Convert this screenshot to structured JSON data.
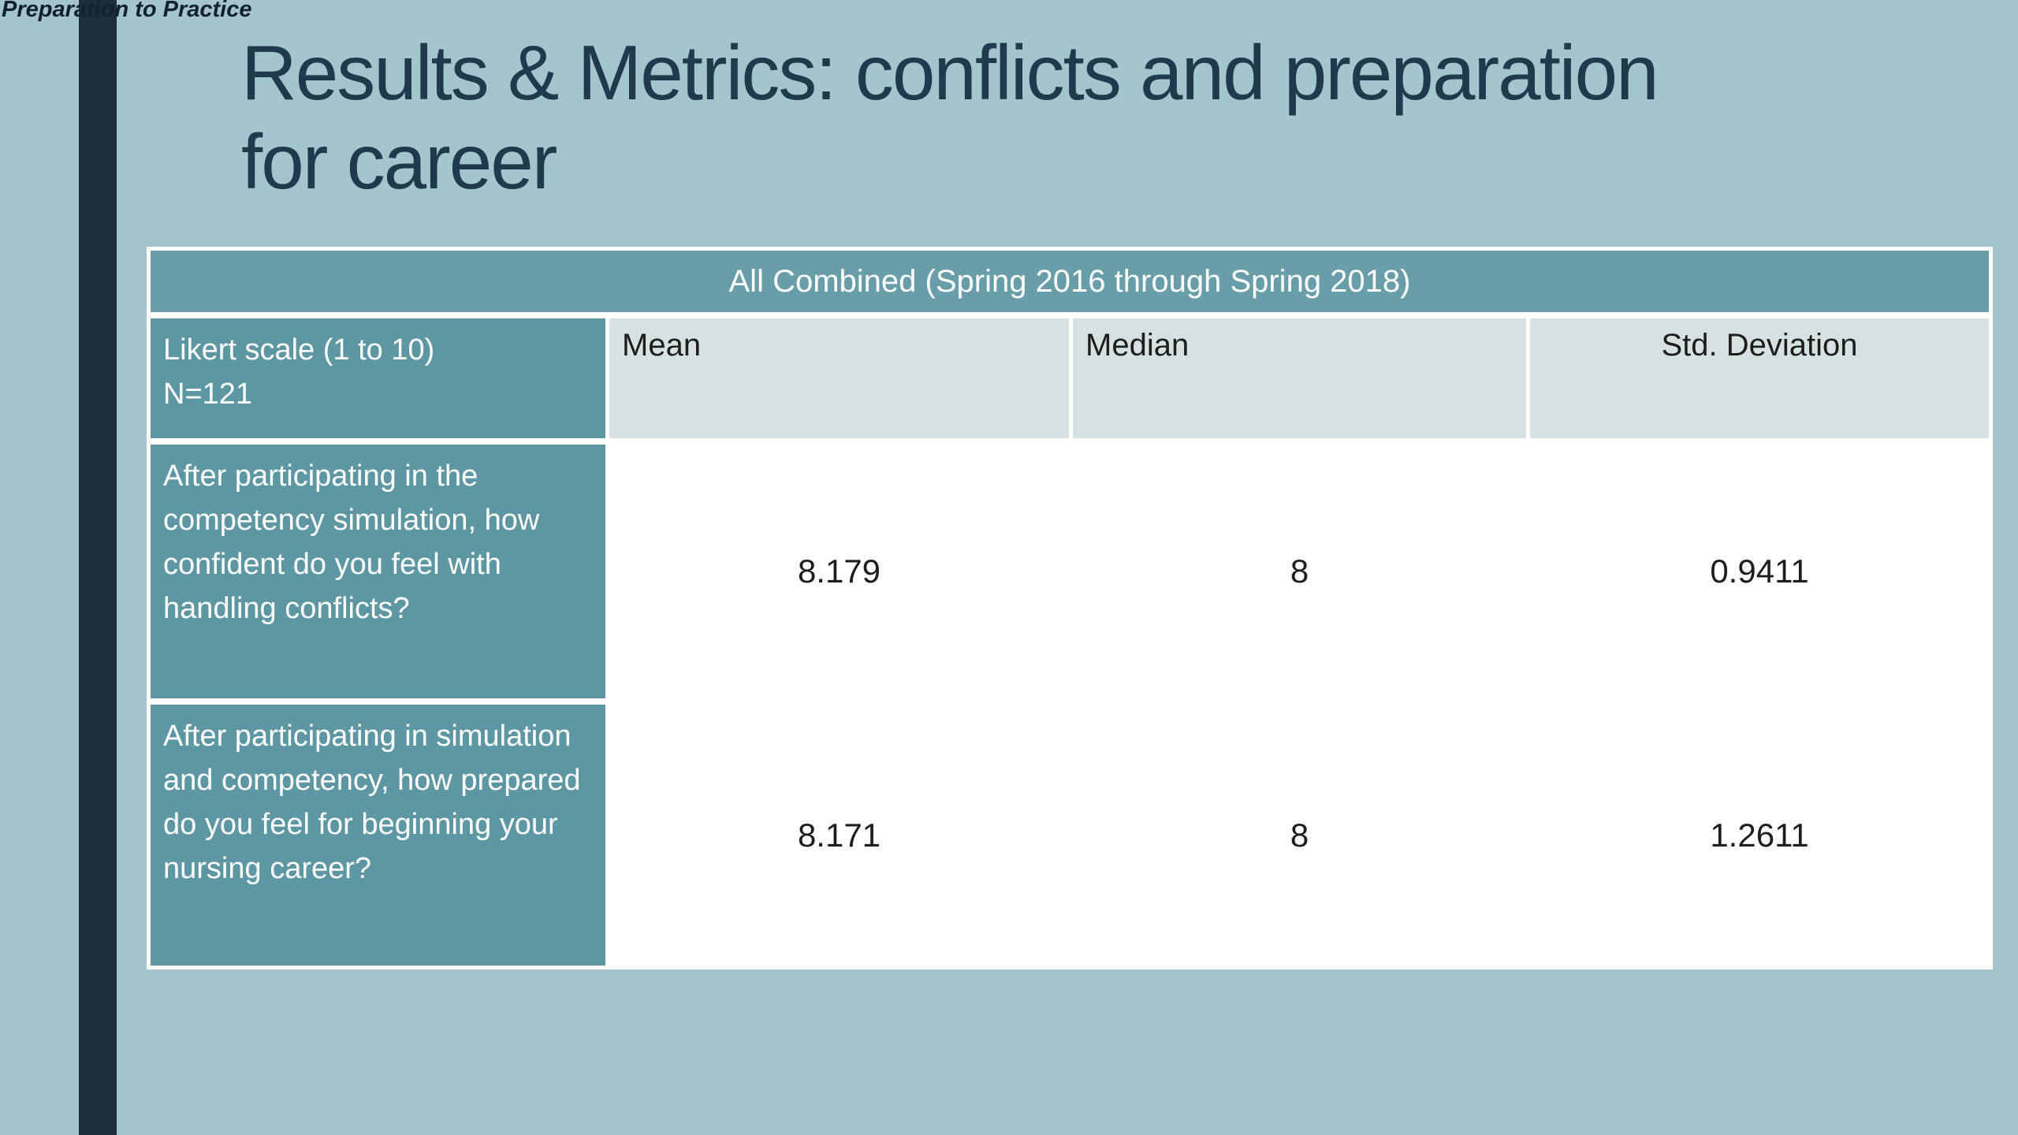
{
  "slide": {
    "corner_label": "Preparation to Practice",
    "title_line1": "Results & Metrics: conflicts and preparation",
    "title_line2": "for career"
  },
  "table": {
    "banner": "All Combined (Spring 2016 through Spring 2018)",
    "header": {
      "row_label_line1": "Likert scale (1 to 10)",
      "row_label_line2": "N=121",
      "columns": [
        "Mean",
        "Median",
        "Std. Deviation"
      ]
    },
    "rows": [
      {
        "question": "After participating in the competency simulation, how confident do you feel with handling conflicts?",
        "mean": "8.179",
        "median": "8",
        "std_dev": "0.9411"
      },
      {
        "question": "After participating in simulation and competency, how prepared do you feel for beginning your nursing career?",
        "mean": "8.171",
        "median": "8",
        "std_dev": "1.2611"
      }
    ]
  },
  "colors": {
    "background": "#a5c5cd",
    "side_bar": "#1c2d3c",
    "title_text": "#1f3a4d",
    "banner_teal": "#679ea9",
    "question_teal": "#5e97a4",
    "header_cell_bg": "#d6e2e1",
    "row1_cell_bg": "#eef2f1",
    "row2_cell_bg": "#d1dfde",
    "table_border": "#ffffff",
    "cell_text": "#1d1d1f"
  }
}
